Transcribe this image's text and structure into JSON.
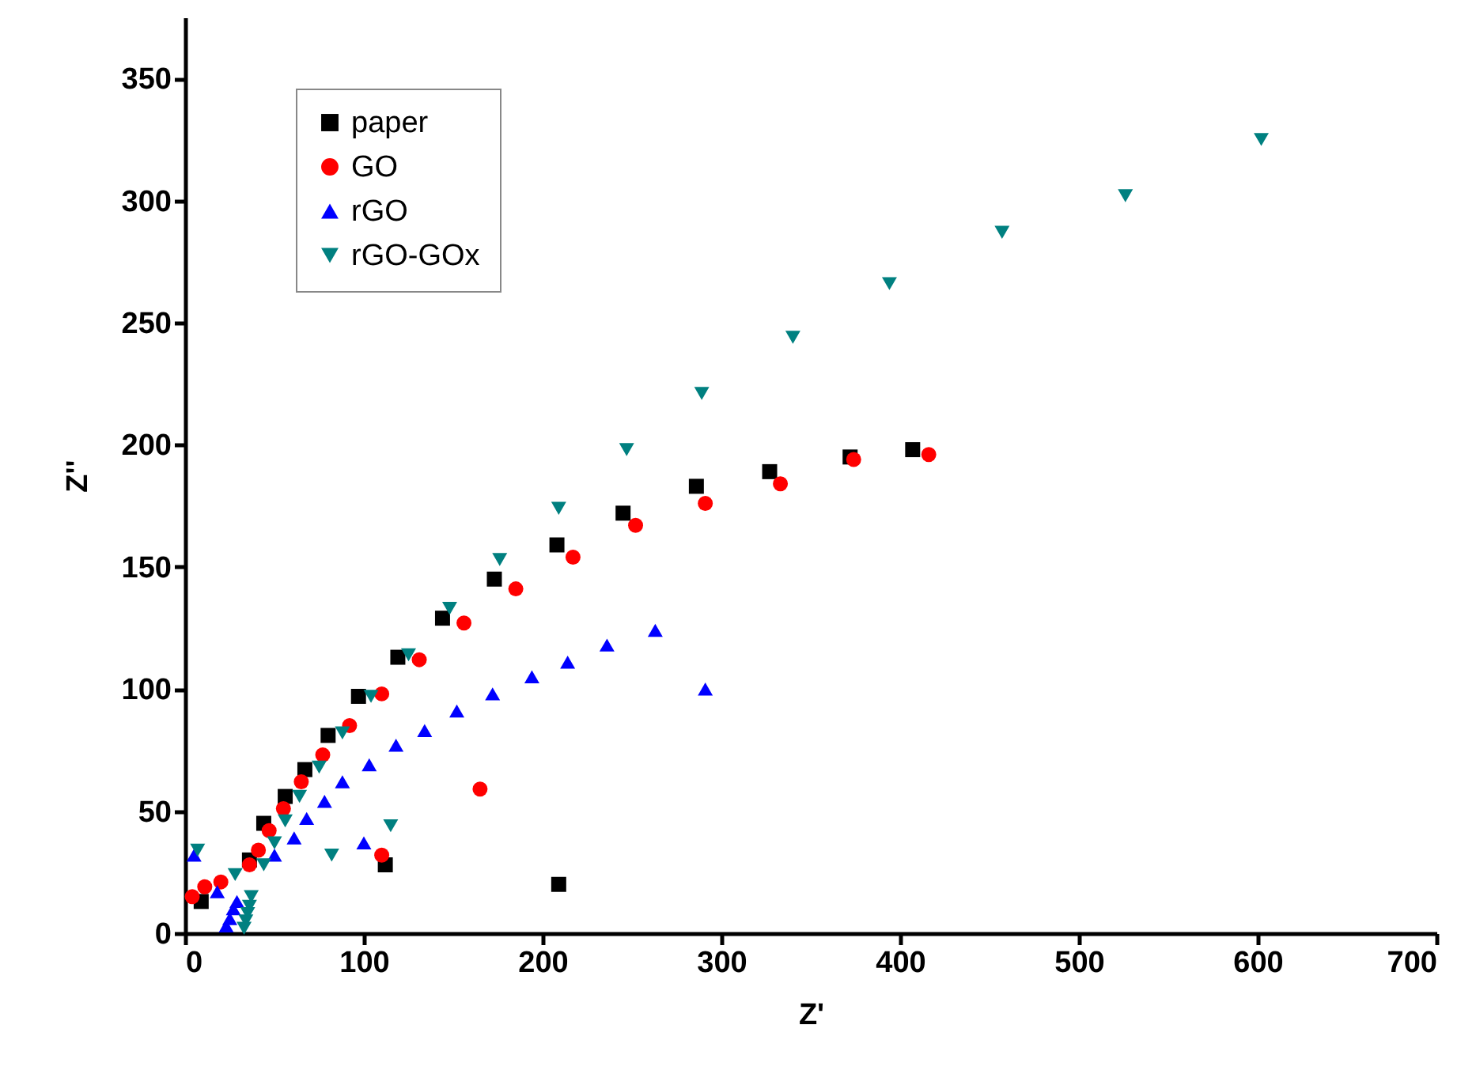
{
  "chart_data": {
    "type": "scatter",
    "xlabel": "Z'",
    "ylabel": "Z''",
    "xlim": [
      0,
      700
    ],
    "ylim": [
      0,
      375
    ],
    "xticks": [
      0,
      100,
      200,
      300,
      400,
      500,
      600,
      700
    ],
    "yticks": [
      0,
      50,
      100,
      150,
      200,
      250,
      300,
      350
    ],
    "grid": false,
    "legend": "top left",
    "series": [
      {
        "name": "paper",
        "color": "#000000",
        "marker": "square",
        "x": [
          9,
          36,
          44,
          56,
          67,
          80,
          97,
          119,
          144,
          173,
          208,
          245,
          286,
          327,
          372,
          407,
          112,
          209
        ],
        "values": [
          13,
          30,
          45,
          56,
          67,
          81,
          97,
          113,
          129,
          145,
          159,
          172,
          183,
          189,
          195,
          198,
          28,
          20
        ]
      },
      {
        "name": "GO",
        "color": "#ff0000",
        "marker": "circle",
        "x": [
          4,
          11,
          20,
          36,
          41,
          47,
          55,
          65,
          77,
          92,
          110,
          131,
          156,
          185,
          217,
          252,
          291,
          333,
          374,
          416,
          110,
          165
        ],
        "values": [
          15,
          19,
          21,
          28,
          34,
          42,
          51,
          62,
          73,
          85,
          98,
          112,
          127,
          141,
          154,
          167,
          176,
          184,
          194,
          196,
          32,
          59
        ]
      },
      {
        "name": "rGO",
        "color": "#0000ff",
        "marker": "triangle",
        "x": [
          5,
          18,
          23,
          25,
          27,
          29,
          50,
          61,
          68,
          78,
          88,
          103,
          118,
          134,
          152,
          172,
          194,
          214,
          236,
          263,
          291,
          100
        ],
        "values": [
          32,
          17,
          3,
          6,
          10,
          13,
          32,
          39,
          47,
          54,
          62,
          69,
          77,
          83,
          91,
          98,
          105,
          111,
          118,
          124,
          100,
          37
        ]
      },
      {
        "name": "rGO-GOx",
        "color": "#008080",
        "marker": "triangle-down",
        "x": [
          7,
          28,
          33,
          34,
          35,
          36,
          37,
          44,
          50,
          56,
          64,
          75,
          88,
          104,
          125,
          148,
          176,
          209,
          247,
          289,
          340,
          394,
          457,
          526,
          602,
          82,
          115
        ],
        "values": [
          34,
          24,
          2,
          5,
          8,
          11,
          15,
          28,
          37,
          46,
          56,
          68,
          82,
          97,
          114,
          133,
          153,
          174,
          198,
          221,
          244,
          266,
          287,
          302,
          325,
          32,
          44
        ]
      }
    ]
  }
}
